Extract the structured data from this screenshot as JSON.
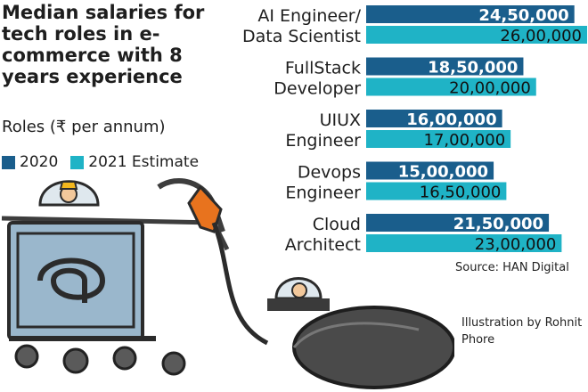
{
  "title": "Median salaries for tech roles in e-commerce with 8 years experience",
  "subtitle": "Roles (₹ per annum)",
  "legend": [
    {
      "label": "2020",
      "color": "#1a5e8c"
    },
    {
      "label": "2021 Estimate",
      "color": "#1fb3c6"
    }
  ],
  "source": "Source: HAN Digital",
  "credit": "Illustration by Rohnit Phore",
  "chart_data": {
    "type": "bar",
    "orientation": "horizontal",
    "title": "Median salaries for tech roles in e-commerce with 8 years experience",
    "ylabel": "Roles (₹ per annum)",
    "categories": [
      [
        "AI Engineer/",
        "Data Scientist"
      ],
      [
        "FullStack",
        "Developer"
      ],
      [
        "UIUX",
        "Engineer"
      ],
      [
        "Devops",
        "Engineer"
      ],
      [
        "Cloud",
        "Architect"
      ]
    ],
    "series": [
      {
        "name": "2020",
        "color": "#1a5e8c",
        "values": [
          2450000,
          1850000,
          1600000,
          1500000,
          2150000
        ],
        "labels": [
          "24,50,000",
          "18,50,000",
          "16,00,000",
          "15,00,000",
          "21,50,000"
        ]
      },
      {
        "name": "2021 Estimate",
        "color": "#1fb3c6",
        "values": [
          2600000,
          2000000,
          1700000,
          1650000,
          2300000
        ],
        "labels": [
          "26,00,000",
          "20,00,000",
          "17,00,000",
          "16,50,000",
          "23,00,000"
        ]
      }
    ],
    "grid": false,
    "legend_position": "left"
  }
}
